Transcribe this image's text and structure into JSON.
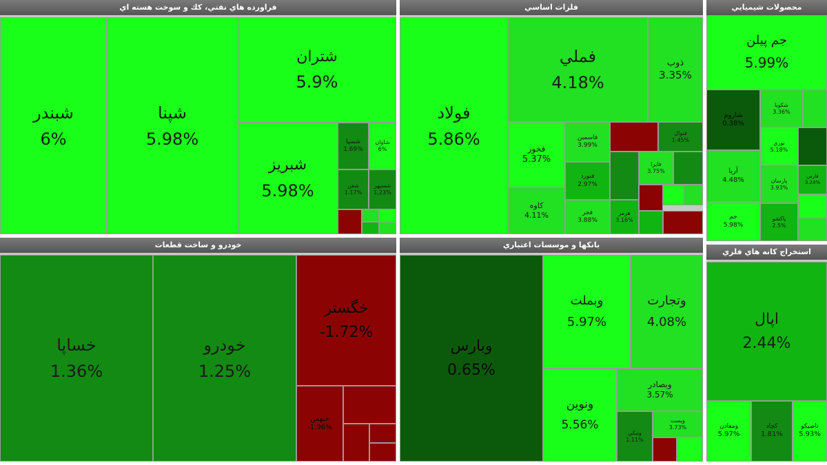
{
  "colors": {
    "strong_up": "#19ff19",
    "up": "#22e022",
    "mild_up": "#11b511",
    "low_up": "#138a13",
    "flat_up": "#0b5a0b",
    "down": "#8b0303",
    "header": "#5f5f5f",
    "gap": "#c8c8c8"
  },
  "panels": [
    {
      "id": "oil",
      "title": "فراورده هاي نفتي، كك و سوخت هسته اي"
    },
    {
      "id": "metals",
      "title": "فلزات اساسي"
    },
    {
      "id": "chem",
      "title": "محصولات شيميايي"
    },
    {
      "id": "auto",
      "title": "خودرو و ساخت قطعات"
    },
    {
      "id": "banks",
      "title": "بانكها و موسسات اعتباري"
    },
    {
      "id": "mining",
      "title": "استخراج كانه هاي فلزي"
    }
  ],
  "chart_data": {
    "type": "treemap",
    "title": "",
    "value_unit": "%",
    "sectors": [
      {
        "sector": "فراورده هاي نفتي، كك و سوخت هسته اي",
        "stocks": [
          {
            "name": "شبندر",
            "change": "6%"
          },
          {
            "name": "شپنا",
            "change": "5.98%"
          },
          {
            "name": "شتران",
            "change": "5.9%"
          },
          {
            "name": "شبريز",
            "change": "5.98%"
          },
          {
            "name": "شسپا",
            "change": "1.69%"
          },
          {
            "name": "شاوان",
            "change": "6%"
          },
          {
            "name": "شفن",
            "change": "1.17%"
          },
          {
            "name": "شسپهر",
            "change": "1.23%"
          }
        ]
      },
      {
        "sector": "فلزات اساسي",
        "stocks": [
          {
            "name": "فولاد",
            "change": "5.86%"
          },
          {
            "name": "فملي",
            "change": "4.18%"
          },
          {
            "name": "ذوب",
            "change": "3.35%"
          },
          {
            "name": "فخوز",
            "change": "5.37%"
          },
          {
            "name": "كاوه",
            "change": "4.11%"
          },
          {
            "name": "فاسمين",
            "change": "3.99%"
          },
          {
            "name": "فنورد",
            "change": "2.97%"
          },
          {
            "name": "فجر",
            "change": "3.88%"
          },
          {
            "name": "فايرا",
            "change": "3.75%"
          },
          {
            "name": "هرمز",
            "change": "3.16%"
          },
          {
            "name": "فنوال",
            "change": "1.45%"
          }
        ]
      },
      {
        "sector": "محصولات شيميايي",
        "stocks": [
          {
            "name": "جم پيلن",
            "change": "5.99%"
          },
          {
            "name": "شاروم",
            "change": "0.38%"
          },
          {
            "name": "شكويا",
            "change": "3.36%"
          },
          {
            "name": "آريا",
            "change": "4.48%"
          },
          {
            "name": "نوري",
            "change": "5.18%"
          },
          {
            "name": "پارسان",
            "change": "3.93%"
          },
          {
            "name": "جم",
            "change": "5.98%"
          },
          {
            "name": "پاكشو",
            "change": "2.5%"
          },
          {
            "name": "فارس",
            "change": "3.24%"
          }
        ]
      },
      {
        "sector": "خودرو و ساخت قطعات",
        "stocks": [
          {
            "name": "خساپا",
            "change": "1.36%"
          },
          {
            "name": "خودرو",
            "change": "1.25%"
          },
          {
            "name": "خگستر",
            "change": "-1.72%"
          },
          {
            "name": "خبهمن",
            "change": "-1.96%"
          }
        ]
      },
      {
        "sector": "بانكها و موسسات اعتباري",
        "stocks": [
          {
            "name": "وبارس",
            "change": "0.65%"
          },
          {
            "name": "وبملت",
            "change": "5.97%"
          },
          {
            "name": "وتجارت",
            "change": "4.08%"
          },
          {
            "name": "ونوين",
            "change": "5.56%"
          },
          {
            "name": "وبصادر",
            "change": "3.57%"
          },
          {
            "name": "ونيكي",
            "change": "1.11%"
          },
          {
            "name": "وپست",
            "change": "3.73%"
          }
        ]
      },
      {
        "sector": "استخراج كانه هاي فلزي",
        "stocks": [
          {
            "name": "اپال",
            "change": "2.44%"
          },
          {
            "name": "ومعادن",
            "change": "5.97%"
          },
          {
            "name": "كچاد",
            "change": "1.81%"
          },
          {
            "name": "تاصيكو",
            "change": "5.93%"
          }
        ]
      }
    ]
  }
}
